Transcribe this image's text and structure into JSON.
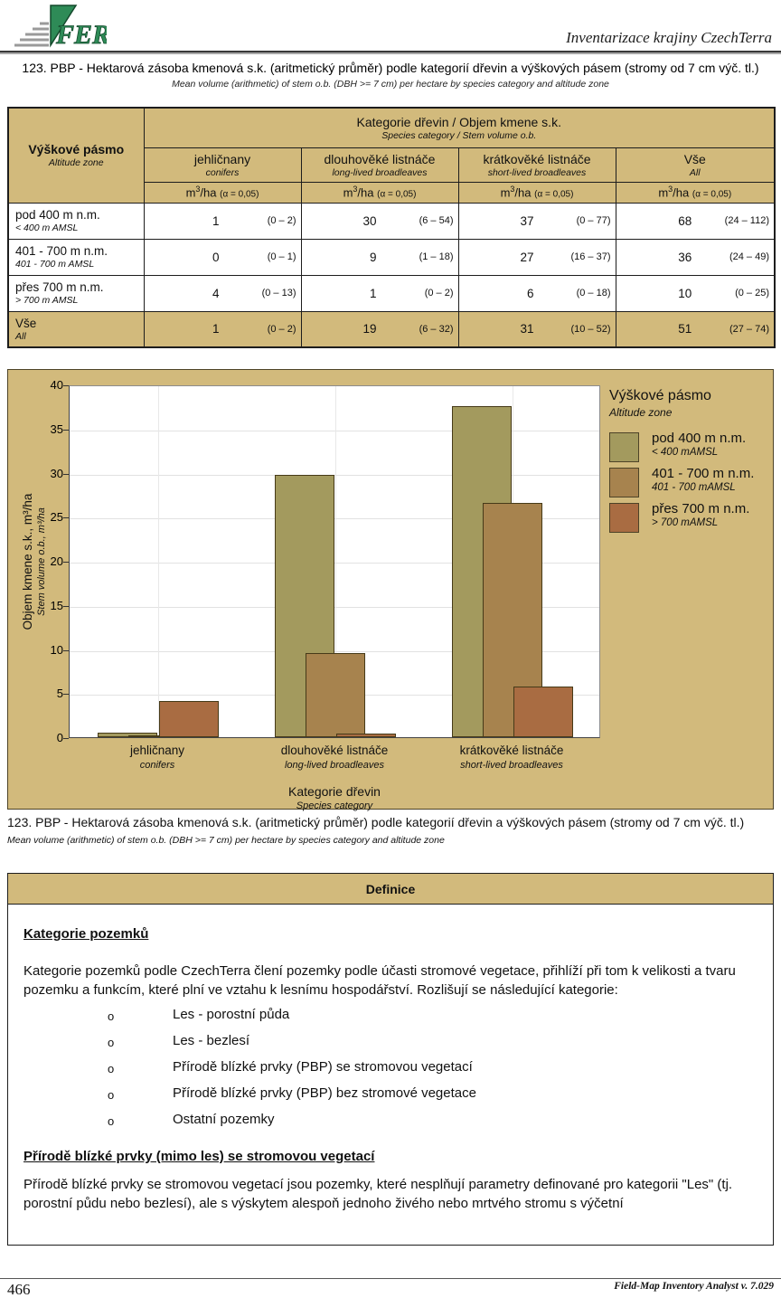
{
  "header": {
    "brand": "Inventarizace krajiny CzechTerra",
    "logo_text": "FER"
  },
  "report_title": {
    "cs": "123. PBP - Hektarová zásoba kmenová s.k. (aritmetický průměr) podle kategorií dřevin a výškových pásem (stromy od 7 cm výč. tl.)",
    "en": "Mean volume (arithmetic) of stem o.b. (DBH >= 7 cm) per hectare by species category and altitude zone"
  },
  "table": {
    "corner": {
      "cs": "Výškové pásmo",
      "en": "Altitude zone"
    },
    "group_header": {
      "cs": "Kategorie dřevin / Objem kmene s.k.",
      "en": "Species category / Stem volume o.b."
    },
    "columns": [
      {
        "cs": "jehličnany",
        "en": "conifers"
      },
      {
        "cs": "dlouhověké listnáče",
        "en": "long-lived broadleaves"
      },
      {
        "cs": "krátkověké listnáče",
        "en": "short-lived broadleaves"
      },
      {
        "cs": "Vše",
        "en": "All"
      }
    ],
    "unit": {
      "base": "m",
      "sup": "3",
      "rest": "/ha",
      "alpha": "(α = 0,05)"
    },
    "rows": [
      {
        "cs": "pod 400 m n.m.",
        "en": "< 400 m AMSL",
        "cells": [
          {
            "v": "1",
            "ci": "(0 – 2)"
          },
          {
            "v": "30",
            "ci": "(6 – 54)"
          },
          {
            "v": "37",
            "ci": "(0 – 77)"
          },
          {
            "v": "68",
            "ci": "(24 – 112)"
          }
        ]
      },
      {
        "cs": "401 - 700 m n.m.",
        "en": "401 - 700 m AMSL",
        "cells": [
          {
            "v": "0",
            "ci": "(0 – 1)"
          },
          {
            "v": "9",
            "ci": "(1 – 18)"
          },
          {
            "v": "27",
            "ci": "(16 – 37)"
          },
          {
            "v": "36",
            "ci": "(24 – 49)"
          }
        ]
      },
      {
        "cs": "přes 700 m n.m.",
        "en": "> 700 m AMSL",
        "cells": [
          {
            "v": "4",
            "ci": "(0 – 13)"
          },
          {
            "v": "1",
            "ci": "(0 – 2)"
          },
          {
            "v": "6",
            "ci": "(0 – 18)"
          },
          {
            "v": "10",
            "ci": "(0 – 25)"
          }
        ]
      },
      {
        "cs": "Vše",
        "en": "All",
        "cells": [
          {
            "v": "1",
            "ci": "(0 – 2)"
          },
          {
            "v": "19",
            "ci": "(6 – 32)"
          },
          {
            "v": "31",
            "ci": "(10 – 52)"
          },
          {
            "v": "51",
            "ci": "(27 – 74)"
          }
        ]
      }
    ]
  },
  "chart_data": {
    "type": "bar",
    "style": "overlapped-grouped-bars",
    "categories": [
      {
        "cs": "jehličnany",
        "en": "conifers"
      },
      {
        "cs": "dlouhověké listnáče",
        "en": "long-lived broadleaves"
      },
      {
        "cs": "krátkověké listnáče",
        "en": "short-lived broadleaves"
      }
    ],
    "series": [
      {
        "name_cs": "pod 400 m n.m.",
        "name_en": "< 400 mAMSL",
        "color": "#a39a5e",
        "values": [
          0.5,
          29.7,
          37.5
        ]
      },
      {
        "name_cs": "401 - 700 m n.m.",
        "name_en": "401 - 700 mAMSL",
        "color": "#a7834e",
        "values": [
          0.2,
          9.5,
          26.6
        ]
      },
      {
        "name_cs": "přes 700 m n.m.",
        "name_en": "> 700 mAMSL",
        "color": "#a96c42",
        "values": [
          4.1,
          0.4,
          5.7
        ]
      }
    ],
    "xlabel_cs": "Kategorie dřevin",
    "xlabel_en": "Species category",
    "ylabel_cs": "Objem kmene s.k., m³/ha",
    "ylabel_en": "Stem volume o.b., m³/ha",
    "ylim": [
      0,
      40
    ],
    "ytick_step": 5,
    "grid": true,
    "legend_title_cs": "Výškové pásmo",
    "legend_title_en": "Altitude zone",
    "legend_position": "right",
    "background_color": "#d2ba7c"
  },
  "definitions": {
    "panel_title": "Definice",
    "heading1": "Kategorie pozemků",
    "para1": "Kategorie pozemků podle CzechTerra člení pozemky podle účasti stromové vegetace, přihlíží při tom k velikosti a tvaru pozemku a funkcím, které plní ve vztahu k lesnímu hospodářství. Rozlišují se následující kategorie:",
    "bullet_marker": "o",
    "bullets": [
      "Les - porostní půda",
      "Les - bezlesí",
      "Přírodě blízké prvky (PBP) se stromovou vegetací",
      "Přírodě blízké prvky (PBP) bez stromové vegetace",
      "Ostatní pozemky"
    ],
    "heading2": "Přírodě blízké prvky (mimo les) se stromovou vegetací",
    "para2": "Přírodě blízké prvky se stromovou vegetací jsou pozemky, které nesplňují parametry definované pro kategorii \"Les\" (tj. porostní půdu nebo bezlesí), ale s výskytem alespoň jednoho živého nebo mrtvého stromu s výčetní"
  },
  "footer": {
    "page_number": "466",
    "app_version": "Field-Map Inventory Analyst v. 7.029"
  }
}
